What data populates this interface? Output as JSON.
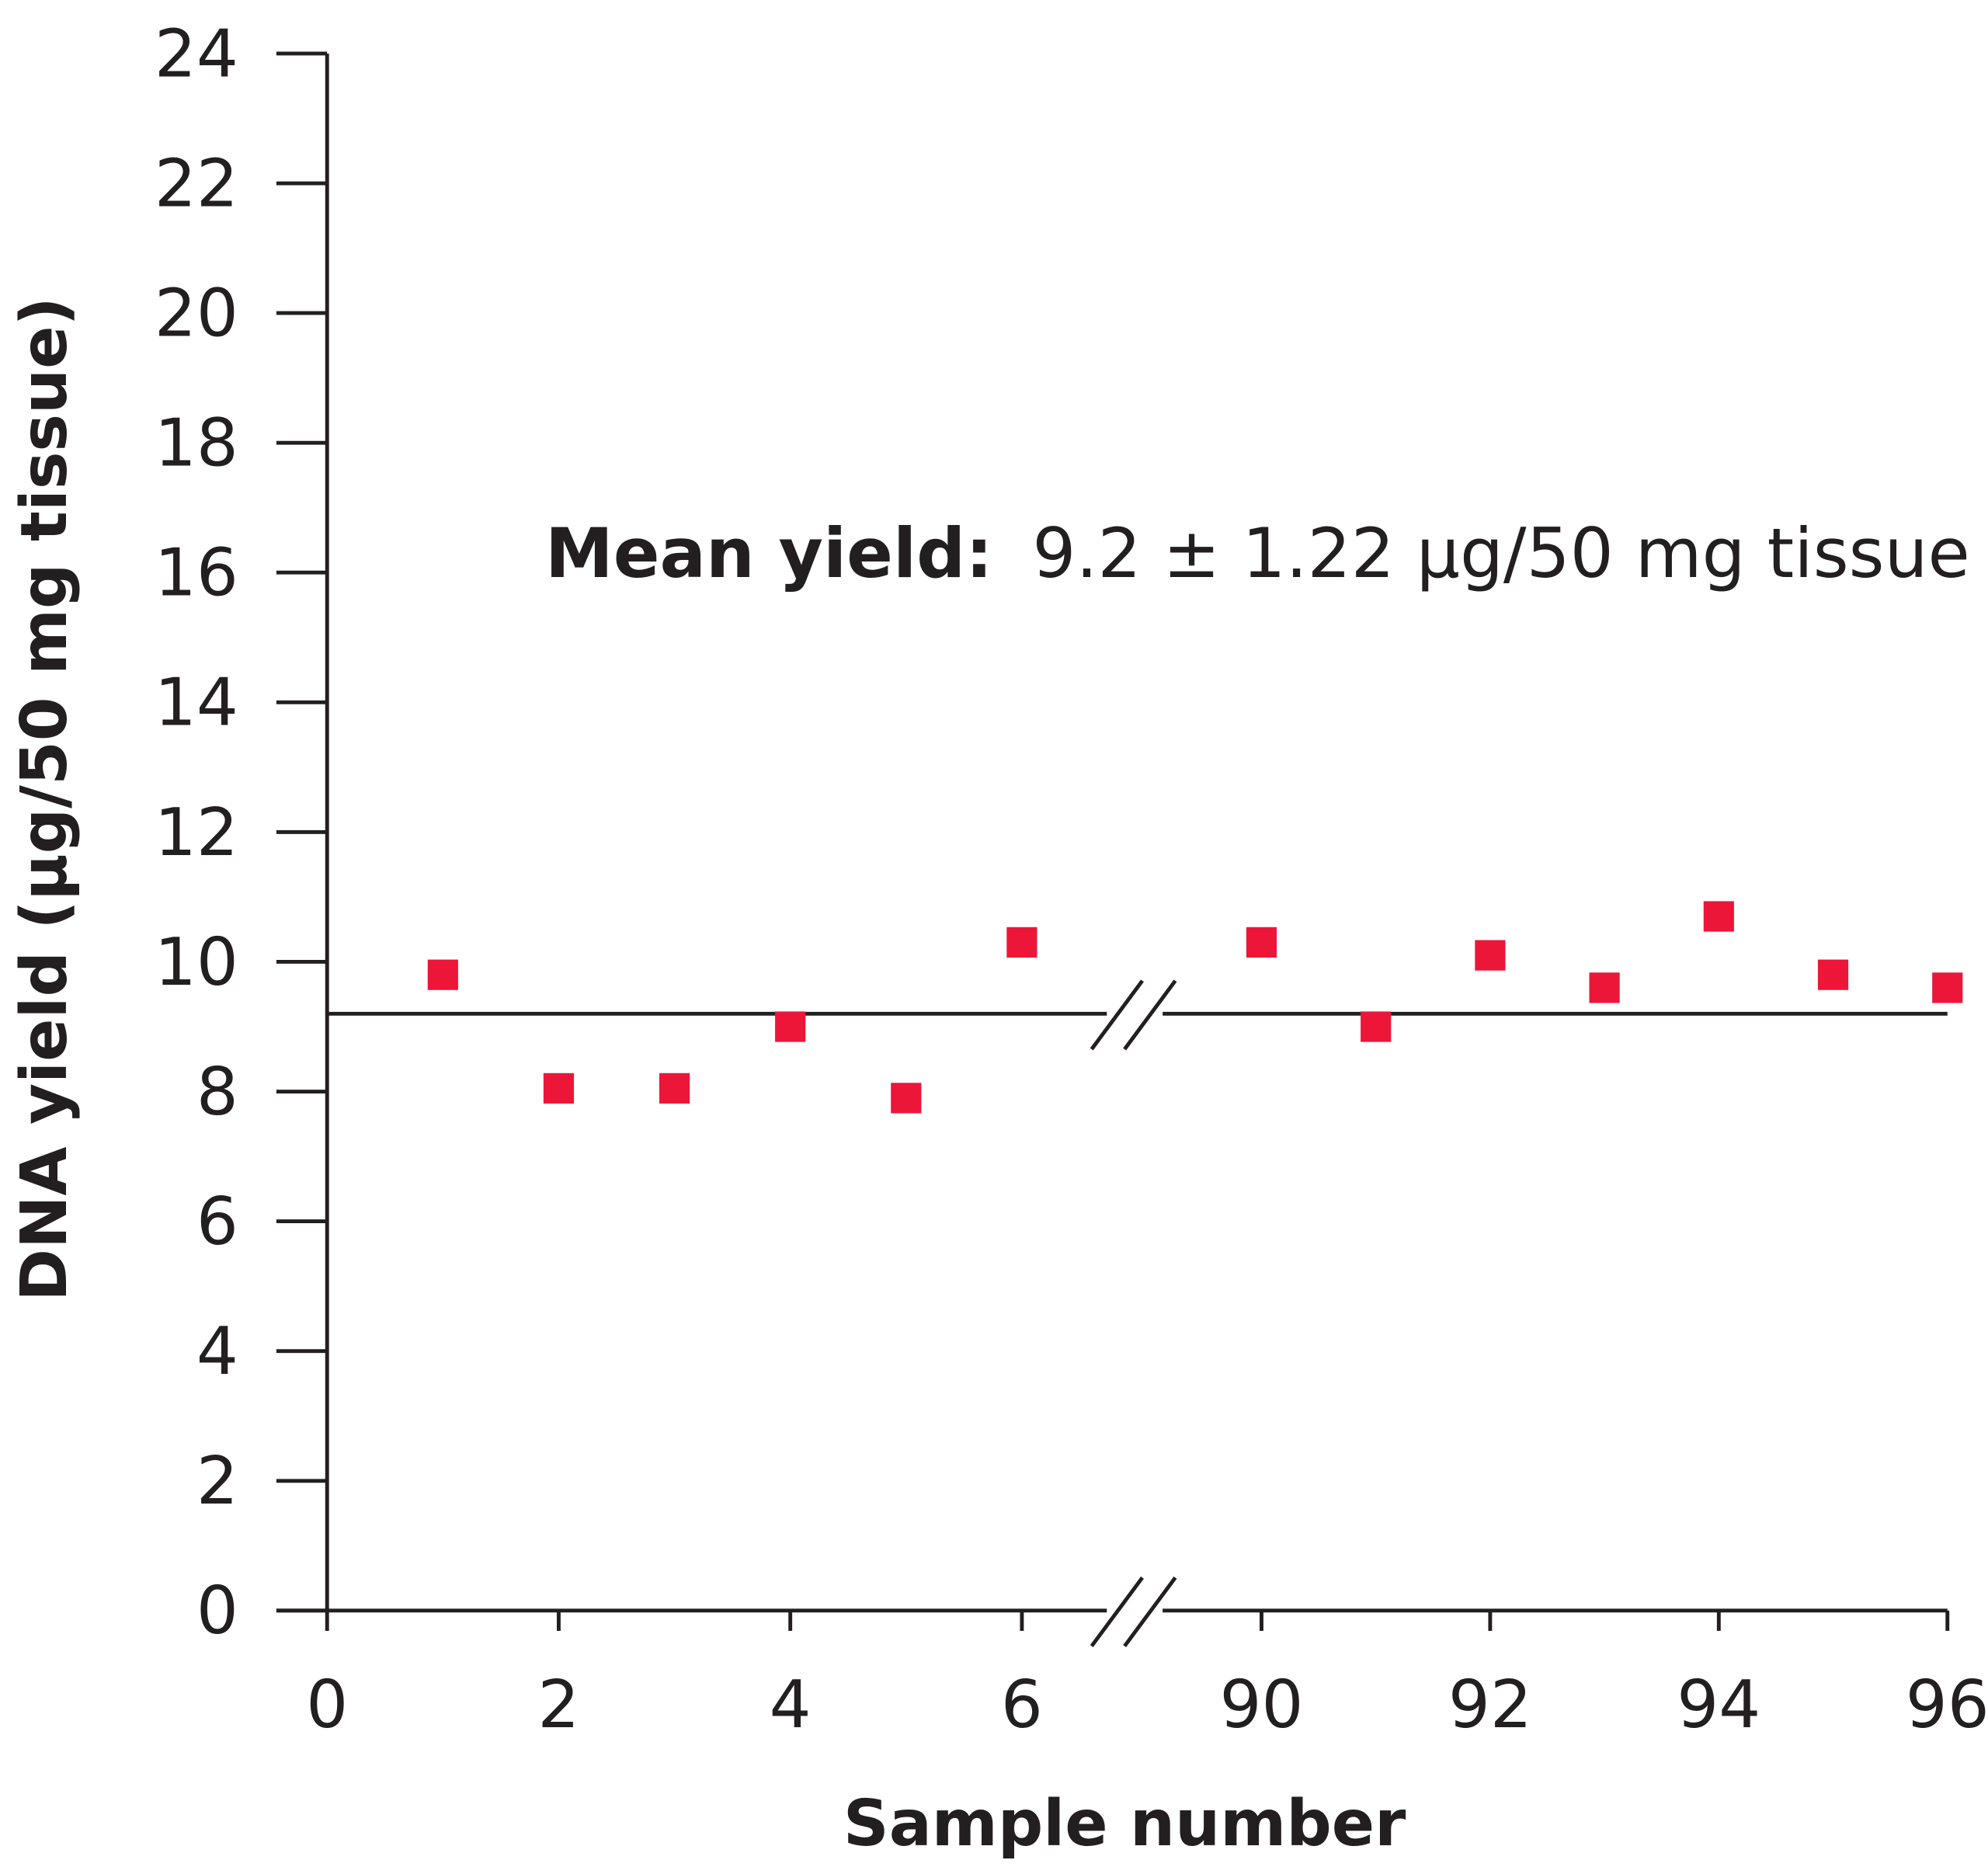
{
  "chart_data": {
    "type": "scatter",
    "title": "",
    "xlabel": "Sample number",
    "ylabel": "DNA yield (µg/50 mg tissue)",
    "ylim": [
      0,
      24
    ],
    "yticks": [
      "0",
      "2",
      "4",
      "6",
      "8",
      "10",
      "12",
      "14",
      "16",
      "18",
      "20",
      "22",
      "24"
    ],
    "x_segments": [
      [
        0,
        6
      ],
      [
        90,
        96
      ]
    ],
    "x_break": true,
    "xticks": [
      "0",
      "2",
      "4",
      "6",
      "90",
      "92",
      "94",
      "96"
    ],
    "grid": false,
    "series": [
      {
        "name": "DNA yield",
        "color": "#ec1639",
        "marker": "square",
        "x": [
          1,
          2,
          3,
          4,
          5,
          6,
          90,
          91,
          92,
          93,
          94,
          95,
          96
        ],
        "y": [
          9.8,
          8.05,
          8.05,
          9.0,
          7.9,
          10.3,
          10.3,
          9.0,
          10.1,
          9.6,
          10.7,
          9.8,
          9.6
        ]
      }
    ],
    "mean_line": 9.2,
    "annotation": {
      "bold": "Mean yield:",
      "text": "9.2 ± 1.22 µg/50 mg tissue"
    }
  }
}
